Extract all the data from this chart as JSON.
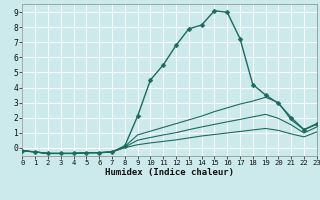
{
  "xlabel": "Humidex (Indice chaleur)",
  "bg_color": "#cce9ec",
  "grid_color": "#ffffff",
  "line_color": "#1a6b5e",
  "xlim": [
    0,
    23
  ],
  "ylim": [
    -0.55,
    9.55
  ],
  "xticks": [
    0,
    1,
    2,
    3,
    4,
    5,
    6,
    7,
    8,
    9,
    10,
    11,
    12,
    13,
    14,
    15,
    16,
    17,
    18,
    19,
    20,
    21,
    22,
    23
  ],
  "yticks": [
    0,
    1,
    2,
    3,
    4,
    5,
    6,
    7,
    8,
    9
  ],
  "line1_x": [
    0,
    1,
    2,
    3,
    4,
    5,
    6,
    7,
    8,
    9,
    10,
    11,
    12,
    13,
    14,
    15,
    16,
    17,
    18,
    19,
    20,
    21,
    22,
    23
  ],
  "line1_y": [
    -0.2,
    -0.28,
    -0.38,
    -0.38,
    -0.38,
    -0.33,
    -0.33,
    -0.28,
    0.12,
    2.1,
    4.5,
    5.5,
    6.8,
    7.9,
    8.15,
    9.1,
    9.0,
    7.25,
    4.2,
    3.5,
    2.95,
    2.0,
    1.2,
    1.6
  ],
  "line2_x": [
    0,
    1,
    2,
    3,
    4,
    5,
    6,
    7,
    8,
    9,
    10,
    11,
    12,
    13,
    14,
    15,
    16,
    17,
    18,
    19,
    20,
    21,
    22,
    23
  ],
  "line2_y": [
    -0.2,
    -0.28,
    -0.38,
    -0.38,
    -0.38,
    -0.33,
    -0.33,
    -0.28,
    0.08,
    0.85,
    1.1,
    1.35,
    1.6,
    1.85,
    2.1,
    2.4,
    2.65,
    2.9,
    3.1,
    3.35,
    3.0,
    1.85,
    1.2,
    1.55
  ],
  "line3_x": [
    0,
    1,
    2,
    3,
    4,
    5,
    6,
    7,
    8,
    9,
    10,
    11,
    12,
    13,
    14,
    15,
    16,
    17,
    18,
    19,
    20,
    21,
    22,
    23
  ],
  "line3_y": [
    -0.2,
    -0.28,
    -0.38,
    -0.38,
    -0.38,
    -0.33,
    -0.33,
    -0.28,
    0.04,
    0.5,
    0.68,
    0.85,
    1.0,
    1.2,
    1.38,
    1.55,
    1.72,
    1.88,
    2.05,
    2.22,
    1.95,
    1.52,
    0.98,
    1.38
  ],
  "line4_x": [
    0,
    1,
    2,
    3,
    4,
    5,
    6,
    7,
    8,
    9,
    10,
    11,
    12,
    13,
    14,
    15,
    16,
    17,
    18,
    19,
    20,
    21,
    22,
    23
  ],
  "line4_y": [
    -0.2,
    -0.28,
    -0.38,
    -0.38,
    -0.38,
    -0.33,
    -0.33,
    -0.28,
    0.0,
    0.2,
    0.32,
    0.42,
    0.52,
    0.65,
    0.78,
    0.88,
    0.98,
    1.08,
    1.18,
    1.28,
    1.15,
    0.92,
    0.72,
    1.05
  ]
}
